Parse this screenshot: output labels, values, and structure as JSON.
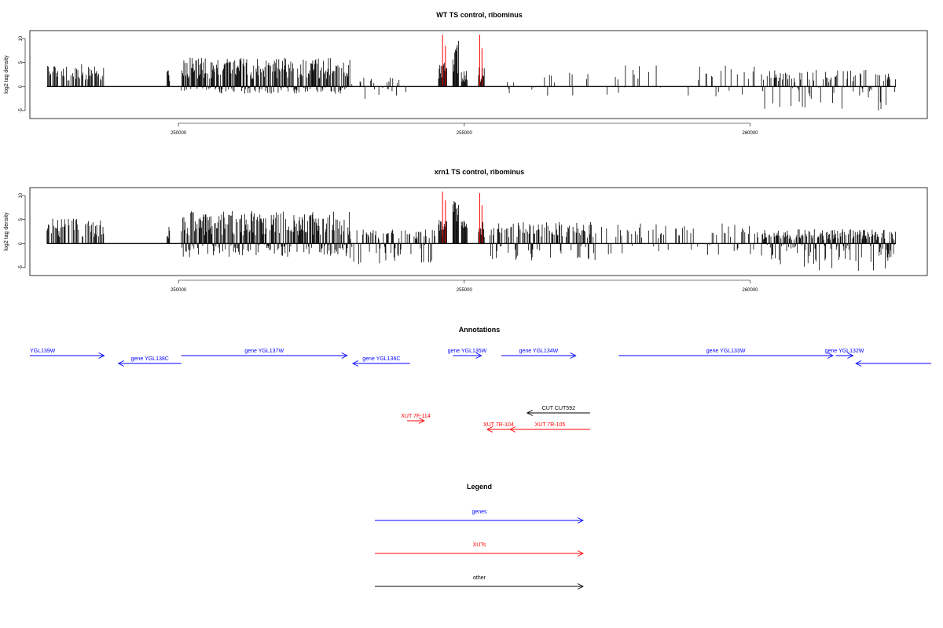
{
  "colors": {
    "gene": "#0000ff",
    "xut": "#ff0000",
    "other": "#000000",
    "signal": "#000000",
    "highlight": "#ff0000"
  },
  "chart_data": [
    {
      "type": "bar",
      "title": "WT TS control, ribominus",
      "ylabel": "log2 tag density",
      "xlim": [
        247400,
        263100
      ],
      "ylim": [
        -6,
        11
      ],
      "yticks": [
        -5,
        0,
        5,
        10
      ],
      "xticks": [
        250000,
        255000,
        260000
      ],
      "xtick_labels": [
        "250000",
        "255000",
        "260000"
      ],
      "x_data_range": [
        247700,
        262550
      ],
      "series": [
        {
          "color": "black",
          "segments": [
            {
              "x": [
                247700,
                248700
              ],
              "y": [
                0,
                4.8
              ],
              "density": 0.5
            },
            {
              "x": [
                249800,
                249850
              ],
              "y": [
                0,
                4.0
              ],
              "density": 1
            },
            {
              "x": [
                250050,
                253000
              ],
              "y": [
                -1.5,
                6.0
              ],
              "density": 1
            },
            {
              "x": [
                253000,
                254000
              ],
              "y": [
                -3.8,
                2.0
              ],
              "density": 0.25
            },
            {
              "x": [
                254550,
                254700
              ],
              "y": [
                0,
                5.0
              ],
              "density": 1
            },
            {
              "x": [
                254800,
                254900
              ],
              "y": [
                0,
                10.0
              ],
              "density": 1
            },
            {
              "x": [
                254950,
                255050
              ],
              "y": [
                0,
                3.5
              ],
              "density": 1
            },
            {
              "x": [
                255250,
                255350
              ],
              "y": [
                0,
                4.0
              ],
              "density": 1
            },
            {
              "x": [
                255600,
                257300
              ],
              "y": [
                -2.0,
                3.0
              ],
              "density": 0.15
            },
            {
              "x": [
                257500,
                260100
              ],
              "y": [
                -2.0,
                4.5
              ],
              "density": 0.15
            },
            {
              "x": [
                260200,
                262550
              ],
              "y": [
                -5.0,
                3.5
              ],
              "density": 0.5
            }
          ]
        },
        {
          "color": "red",
          "peaks": [
            [
              254620,
              10.8
            ],
            [
              254670,
              8.5
            ],
            [
              255270,
              10.8
            ],
            [
              255310,
              8.0
            ]
          ]
        }
      ]
    },
    {
      "type": "bar",
      "title": "xrn1 TS control, ribominus",
      "ylabel": "log2 tag density",
      "xlim": [
        247400,
        263100
      ],
      "ylim": [
        -6,
        11
      ],
      "yticks": [
        -5,
        0,
        5,
        10
      ],
      "xticks": [
        250000,
        255000,
        260000
      ],
      "xtick_labels": [
        "250000",
        "255000",
        "260000"
      ],
      "x_data_range": [
        247700,
        262550
      ],
      "series": [
        {
          "color": "black",
          "segments": [
            {
              "x": [
                247700,
                248700
              ],
              "y": [
                0,
                5.2
              ],
              "density": 0.6
            },
            {
              "x": [
                249800,
                249850
              ],
              "y": [
                0,
                4.2
              ],
              "density": 1
            },
            {
              "x": [
                250050,
                253000
              ],
              "y": [
                -3.0,
                6.8
              ],
              "density": 1
            },
            {
              "x": [
                253000,
                254500
              ],
              "y": [
                -4.5,
                3.0
              ],
              "density": 0.6
            },
            {
              "x": [
                254550,
                254700
              ],
              "y": [
                0,
                5.0
              ],
              "density": 1
            },
            {
              "x": [
                254800,
                254900
              ],
              "y": [
                0,
                10.8
              ],
              "density": 1
            },
            {
              "x": [
                254950,
                255050
              ],
              "y": [
                0,
                5.5
              ],
              "density": 1
            },
            {
              "x": [
                255250,
                255350
              ],
              "y": [
                0,
                4.5
              ],
              "density": 1
            },
            {
              "x": [
                255450,
                257300
              ],
              "y": [
                -3.5,
                4.5
              ],
              "density": 0.7
            },
            {
              "x": [
                257400,
                260200
              ],
              "y": [
                -2.5,
                4.2
              ],
              "density": 0.3
            },
            {
              "x": [
                260200,
                262550
              ],
              "y": [
                -5.8,
                3.0
              ],
              "density": 0.9
            }
          ]
        },
        {
          "color": "red",
          "peaks": [
            [
              254620,
              10.8
            ],
            [
              254670,
              9.0
            ],
            [
              255270,
              10.5
            ],
            [
              255310,
              8.0
            ]
          ]
        }
      ]
    },
    {
      "type": "annotation_track",
      "title": "Annotations",
      "features": [
        {
          "label": "YGL139W",
          "type": "gene",
          "strand": "+",
          "start": 247400,
          "end": 248700
        },
        {
          "label": "gene YGL138C",
          "type": "gene",
          "strand": "-",
          "start": 248950,
          "end": 250050
        },
        {
          "label": "gene YGL137W",
          "type": "gene",
          "strand": "+",
          "start": 250050,
          "end": 252950
        },
        {
          "label": "gene YGL136C",
          "type": "gene",
          "strand": "-",
          "start": 253050,
          "end": 254050
        },
        {
          "label": "gene YGL135W",
          "type": "gene",
          "strand": "+",
          "start": 254800,
          "end": 255300
        },
        {
          "label": "gene YGL134W",
          "type": "gene",
          "strand": "+",
          "start": 255650,
          "end": 256950
        },
        {
          "label": "gene YGL133W",
          "type": "gene",
          "strand": "+",
          "start": 257700,
          "end": 261450
        },
        {
          "label": "gene YGL132W",
          "type": "gene",
          "strand": "+",
          "start": 261500,
          "end": 261800
        },
        {
          "label": "",
          "type": "gene",
          "strand": "-",
          "start": 261850,
          "end": 263200
        },
        {
          "label": "CUT CUT592",
          "type": "other",
          "strand": "-",
          "start": 256100,
          "end": 257200
        },
        {
          "label": "XUT 7F-114",
          "type": "xut",
          "strand": "+",
          "start": 254000,
          "end": 254300
        },
        {
          "label": "XUT 7R-104",
          "type": "xut",
          "strand": "-",
          "start": 255400,
          "end": 255800
        },
        {
          "label": "XUT 7R-105",
          "type": "xut",
          "strand": "-",
          "start": 255800,
          "end": 257200
        }
      ]
    },
    {
      "type": "legend",
      "title": "Legend",
      "items": [
        {
          "label": "genes",
          "type": "gene"
        },
        {
          "label": "XUTs",
          "type": "xut"
        },
        {
          "label": "other",
          "type": "other"
        }
      ]
    }
  ]
}
